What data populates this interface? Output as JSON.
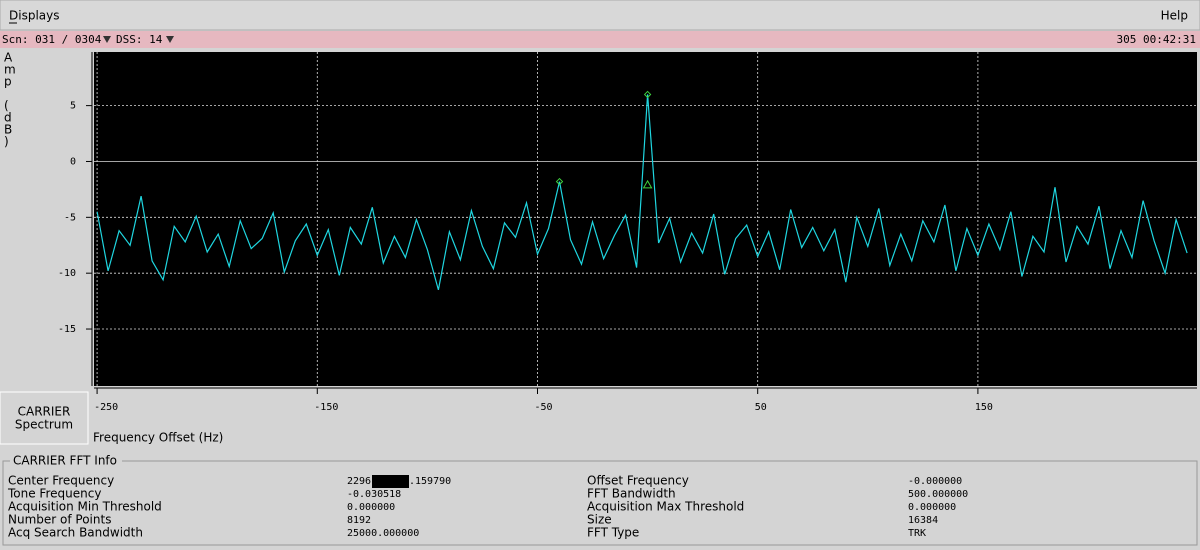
{
  "menu": {
    "left": "Displays",
    "right": "Help"
  },
  "status": {
    "scan": "Scn: 031 / 0304",
    "dss": "DSS: 14",
    "time": "305 00:42:31"
  },
  "side_panel": {
    "line1": "CARRIER",
    "line2": "Spectrum"
  },
  "chart_data": {
    "type": "line",
    "y_label_letters": [
      "A",
      "m",
      "p",
      "(",
      "d",
      "B",
      ")"
    ],
    "x_label": "Frequency Offset (Hz)",
    "xlim": [
      -251.4,
      249.5
    ],
    "xticks": [
      -250,
      -150,
      -50,
      50,
      150
    ],
    "ylim": [
      -20.1,
      9.8
    ],
    "yticks": [
      -15,
      -10,
      -5,
      0,
      5
    ],
    "grid": true,
    "x": [
      -250,
      -245,
      -240,
      -235,
      -230,
      -225,
      -220,
      -215,
      -210,
      -205,
      -200,
      -195,
      -190,
      -185,
      -180,
      -175,
      -170,
      -165,
      -160,
      -155,
      -150,
      -145,
      -140,
      -135,
      -130,
      -125,
      -120,
      -115,
      -110,
      -105,
      -100,
      -95,
      -90,
      -85,
      -80,
      -75,
      -70,
      -65,
      -60,
      -55,
      -50,
      -45,
      -40,
      -35,
      -30,
      -25,
      -20,
      -15,
      -10,
      -5,
      0,
      5,
      10,
      15,
      20,
      25,
      30,
      35,
      40,
      45,
      50,
      55,
      60,
      65,
      70,
      75,
      80,
      85,
      90,
      95,
      100,
      105,
      110,
      115,
      120,
      125,
      130,
      135,
      140,
      145,
      150,
      155,
      160,
      165,
      170,
      175,
      180,
      185,
      190,
      195,
      200,
      205,
      210,
      215,
      220,
      225,
      230,
      235,
      240,
      245
    ],
    "series": [
      {
        "color": "#1fd6e0",
        "values": [
          -4.5,
          -9.8,
          -6.2,
          -7.5,
          -3.1,
          -8.9,
          -10.6,
          -5.8,
          -7.2,
          -4.9,
          -8.1,
          -6.5,
          -9.4,
          -5.3,
          -7.8,
          -6.9,
          -4.6,
          -9.9,
          -7.1,
          -5.6,
          -8.4,
          -6.1,
          -10.2,
          -5.9,
          -7.4,
          -4.1,
          -9.1,
          -6.7,
          -8.6,
          -5.2,
          -7.9,
          -11.5,
          -6.3,
          -8.8,
          -4.4,
          -7.6,
          -9.6,
          -5.5,
          -6.8,
          -3.7,
          -8.3,
          -6.0,
          -1.8,
          -7.0,
          -9.2,
          -5.4,
          -8.7,
          -6.6,
          -4.8,
          -9.5,
          6.0,
          -7.3,
          -5.1,
          -9.0,
          -6.4,
          -8.2,
          -4.7,
          -10.1,
          -6.9,
          -5.7,
          -8.5,
          -6.3,
          -9.7,
          -4.3,
          -7.7,
          -5.9,
          -8.0,
          -6.1,
          -10.8,
          -5.0,
          -7.6,
          -4.2,
          -9.3,
          -6.5,
          -8.9,
          -5.3,
          -7.2,
          -3.9,
          -9.8,
          -6.0,
          -8.4,
          -5.6,
          -7.9,
          -4.5,
          -10.3,
          -6.7,
          -8.1,
          -2.3,
          -9.0,
          -5.8,
          -7.4,
          -4.0,
          -9.6,
          -6.2,
          -8.6,
          -3.5,
          -7.1,
          -10.0,
          -5.2,
          -8.2
        ]
      }
    ],
    "markers": [
      {
        "shape": "diamond",
        "color": "#3fd43f",
        "x": -40,
        "y": -1.8
      },
      {
        "shape": "diamond",
        "color": "#3fd43f",
        "x": 0,
        "y": 6.0
      },
      {
        "shape": "triangle",
        "color": "#3fd43f",
        "x": 0,
        "y": -2.1
      }
    ]
  },
  "fft_info": {
    "title": "CARRIER FFT Info",
    "rows": [
      [
        "Center Frequency",
        [
          "2296",
          ".159790"
        ],
        "Offset Frequency",
        "-0.000000"
      ],
      [
        "Tone Frequency",
        "-0.030518",
        "FFT Bandwidth",
        "500.000000"
      ],
      [
        "Acquisition Min Threshold",
        "0.000000",
        "Acquisition Max Threshold",
        "0.000000"
      ],
      [
        "Number of Points",
        "8192",
        "Size",
        "16384"
      ],
      [
        "Acq Search Bandwidth",
        "25000.000000",
        "FFT Type",
        "TRK"
      ]
    ]
  }
}
